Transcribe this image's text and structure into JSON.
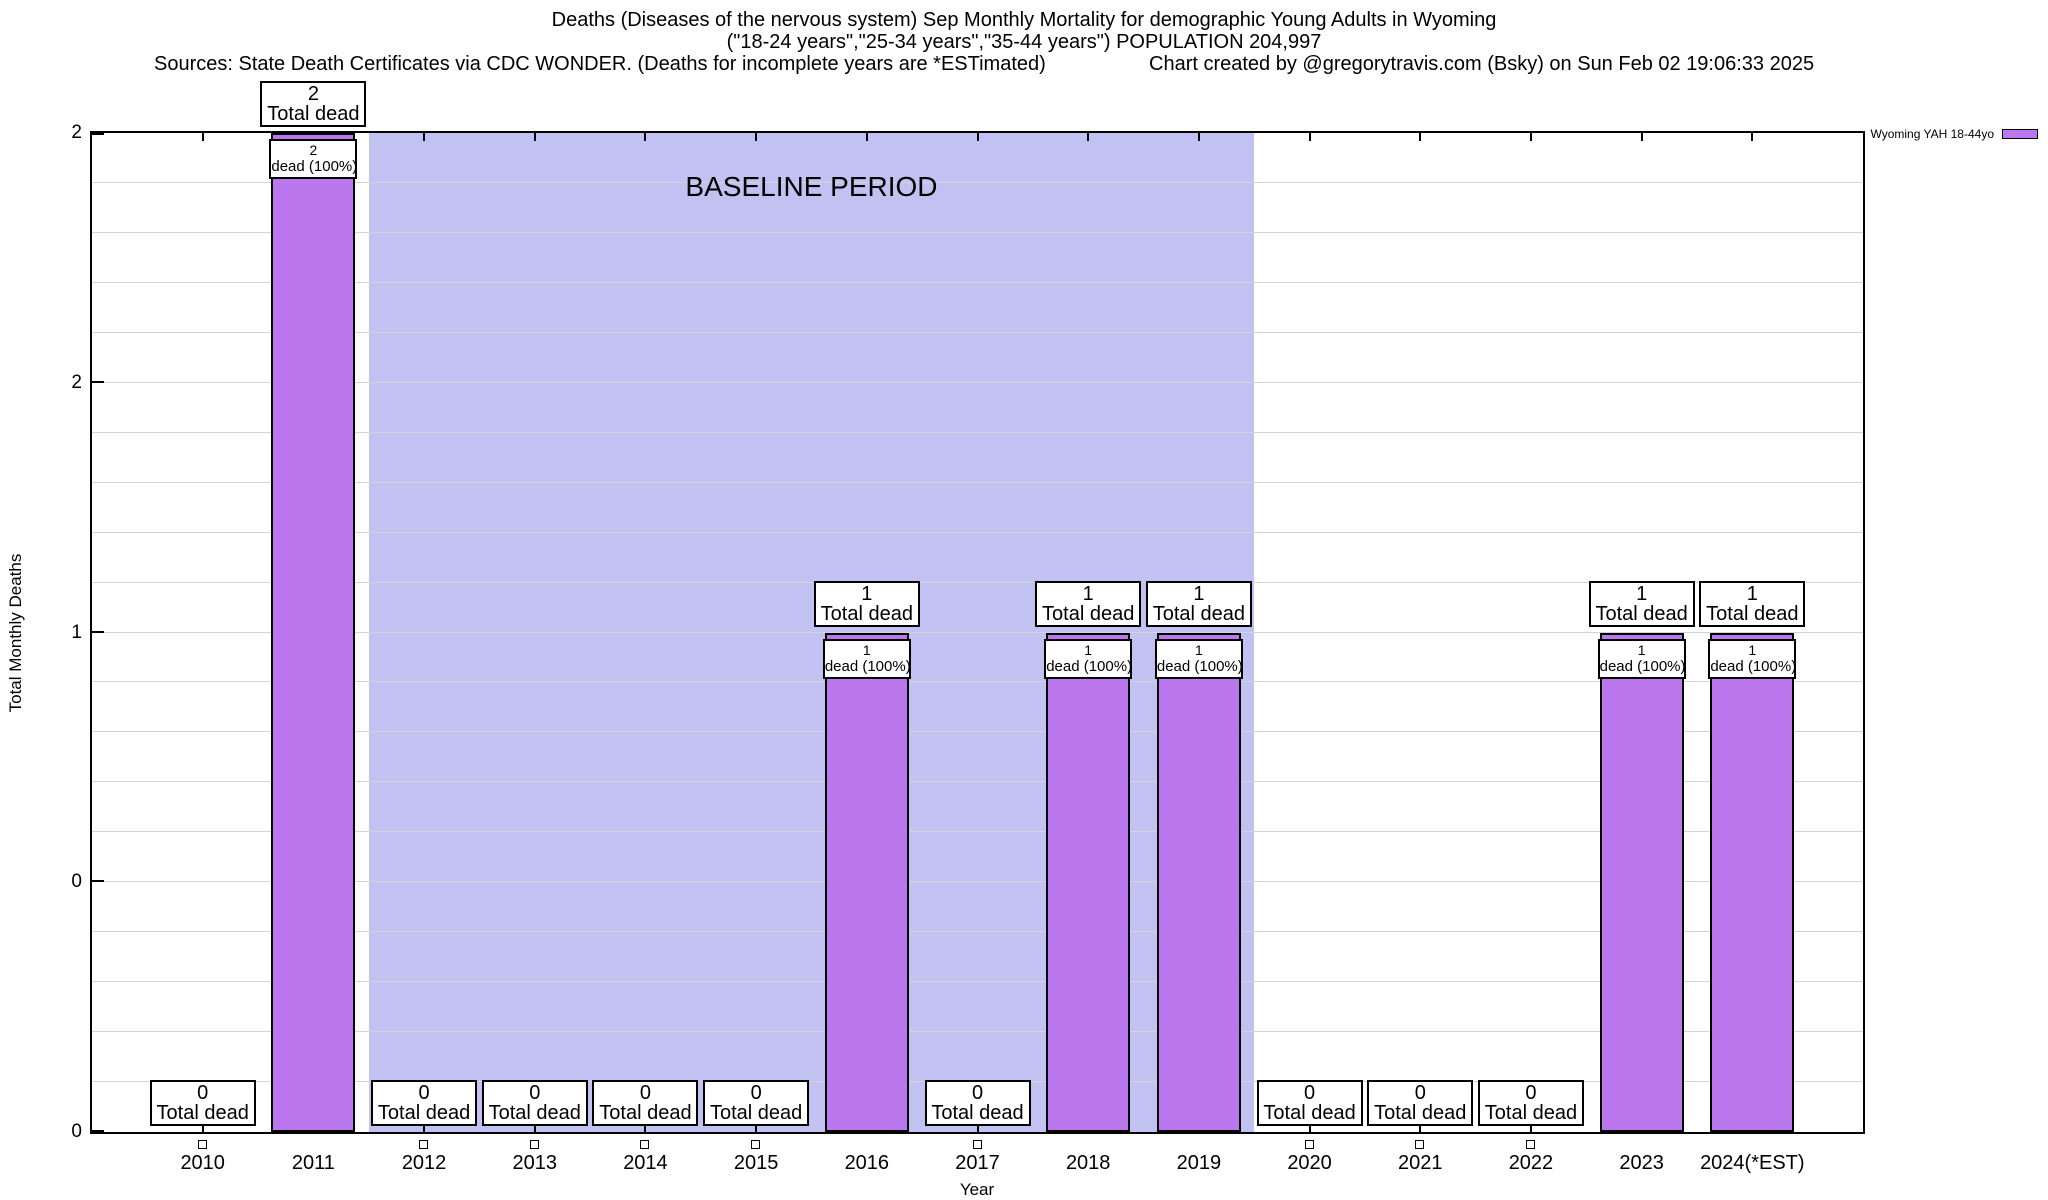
{
  "header": {
    "title": "Deaths (Diseases of the nervous system) Sep Monthly Mortality for demographic Young Adults in Wyoming",
    "subtitle": "(\"18-24 years\",\"25-34 years\",\"35-44 years\") POPULATION 204,997",
    "sources": "Sources: State Death Certificates via CDC WONDER. (Deaths for incomplete years are *ESTimated)",
    "credit": "Chart created by @gregorytravis.com (Bsky) on Sun Feb 02 19:06:33 2025"
  },
  "legend": {
    "label": "Wyoming YAH 18-44yo",
    "swatch_color": "#BB77EE"
  },
  "chart_data": {
    "type": "bar",
    "title": "Deaths (Diseases of the nervous system) Sep Monthly Mortality for demographic Young Adults in Wyoming",
    "xlabel": "Year",
    "ylabel": "Total Monthly Deaths",
    "x_range": [
      2009,
      2025
    ],
    "ylim": [
      0,
      2
    ],
    "grid_step": 0.1,
    "grid_on": true,
    "legend_position": "top-right-outside",
    "series_name": "Wyoming YAH 18-44yo",
    "bar_color": "#BB77EE",
    "gridline_color": "#d4d4d4",
    "categories": [
      "2010",
      "2011",
      "2012",
      "2013",
      "2014",
      "2015",
      "2016",
      "2017",
      "2018",
      "2019",
      "2020",
      "2021",
      "2022",
      "2023",
      "2024(*EST)"
    ],
    "values": [
      0,
      2,
      0,
      0,
      0,
      0,
      1,
      0,
      1,
      1,
      0,
      0,
      0,
      1,
      1
    ],
    "bar_annotation_top": "Total dead",
    "bar_annotation_inner": "dead (100%)",
    "ytick_labels": [
      {
        "value": 0,
        "label": "0"
      },
      {
        "value": 0.5,
        "label": "0"
      },
      {
        "value": 1,
        "label": "1"
      },
      {
        "value": 1.5,
        "label": "2"
      },
      {
        "value": 2,
        "label": "2"
      }
    ],
    "baseline_region": {
      "label": "BASELINE PERIOD",
      "x_start": 2011.5,
      "x_end": 2019.5,
      "color": "#C2C2F2"
    }
  }
}
